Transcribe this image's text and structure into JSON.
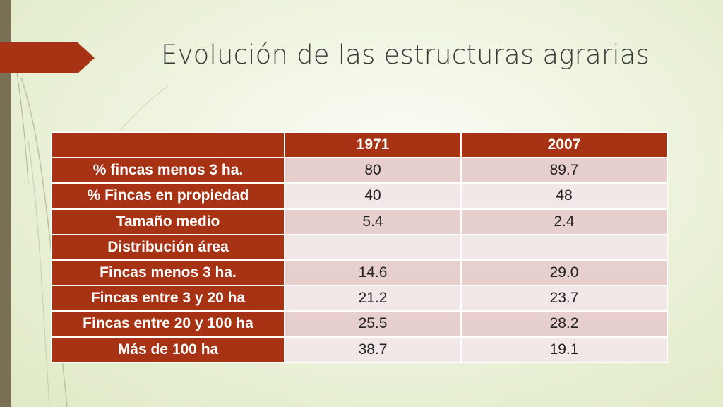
{
  "slide": {
    "title": "Evolución de las  estructuras agrarias"
  },
  "table": {
    "headers": [
      "",
      "1971",
      "2007"
    ],
    "rows": [
      {
        "label": "%  fincas menos 3 ha.",
        "v1971": "80",
        "v2007": "89.7"
      },
      {
        "label": "% Fincas en propiedad",
        "v1971": "40",
        "v2007": "48"
      },
      {
        "label": "Tamaño medio",
        "v1971": "5.4",
        "v2007": "2.4"
      },
      {
        "label": "Distribución área",
        "v1971": "",
        "v2007": ""
      },
      {
        "label": "Fincas menos 3 ha.",
        "v1971": "14.6",
        "v2007": "29.0"
      },
      {
        "label": "Fincas entre 3 y 20 ha",
        "v1971": "21.2",
        "v2007": "23.7"
      },
      {
        "label": "Fincas entre 20 y 100 ha",
        "v1971": "25.5",
        "v2007": "28.2"
      },
      {
        "label": "Más de 100 ha",
        "v1971": "38.7",
        "v2007": "19.1"
      }
    ]
  },
  "colors": {
    "accent": "#a83214",
    "row_odd": "#e6cfcd",
    "row_even": "#f2e8e7",
    "left_band": "#7a7155"
  }
}
